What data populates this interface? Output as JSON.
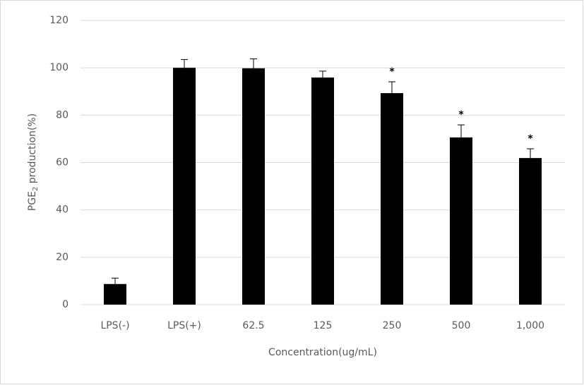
{
  "chart_data": {
    "type": "bar",
    "y_label": [
      "PGE",
      "2",
      " production(%)"
    ],
    "x_label": "Concentration(ug/mL)",
    "categories": [
      "LPS(-)",
      "LPS(+)",
      "62.5",
      "125",
      "250",
      "500",
      "1,000"
    ],
    "values": [
      8.7,
      100,
      99.8,
      95.9,
      89.3,
      70.6,
      61.9
    ],
    "errors": [
      2.5,
      3.5,
      4,
      2.7,
      4.8,
      5.3,
      3.9
    ],
    "significance": [
      null,
      null,
      null,
      null,
      "*",
      "*",
      "*"
    ],
    "color": "#000000",
    "ylim": [
      0,
      120
    ],
    "yticks": [
      0,
      20,
      40,
      60,
      80,
      100,
      120
    ],
    "grid": true
  }
}
